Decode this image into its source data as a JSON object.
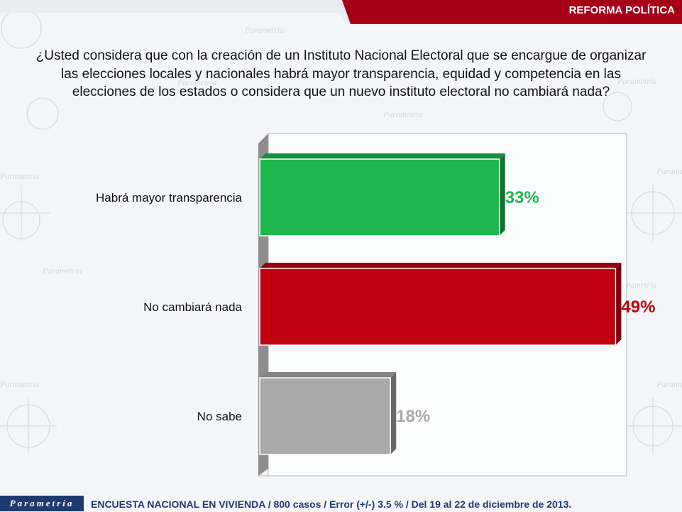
{
  "header": {
    "section_label": "REFORMA POLÍTICA"
  },
  "question": {
    "lines": [
      "¿Usted considera que con la creación de un Instituto Nacional Electoral que se encargue de organizar",
      "las elecciones locales y nacionales habrá mayor transparencia, equidad y competencia en las",
      "elecciones de los estados o considera que un nuevo instituto electoral no cambiará nada?"
    ]
  },
  "colors": {
    "header_bg": "#a60019",
    "green": "#1fb850",
    "red": "#c00010",
    "gray": "#a9a9a9",
    "footer_blue": "#1f3a6e"
  },
  "chart_data": {
    "type": "bar",
    "orientation": "horizontal",
    "categories": [
      "Habrá mayor transparencia",
      "No cambiará nada",
      "No sabe"
    ],
    "values": [
      33,
      49,
      18
    ],
    "value_labels": [
      "33%",
      "49%",
      "18%"
    ],
    "bar_colors": [
      "#1fb850",
      "#c00010",
      "#a9a9a9"
    ],
    "unit": "%",
    "xlim": [
      0,
      60
    ],
    "grid": false,
    "legend": "none"
  },
  "watermark": {
    "brand": "Parametría"
  },
  "footer": {
    "logo": "Parametría",
    "text": "ENCUESTA NACIONAL EN VIVIENDA / 800 casos / Error (+/-) 3.5 % / Del 19 al 22 de diciembre de 2013."
  }
}
